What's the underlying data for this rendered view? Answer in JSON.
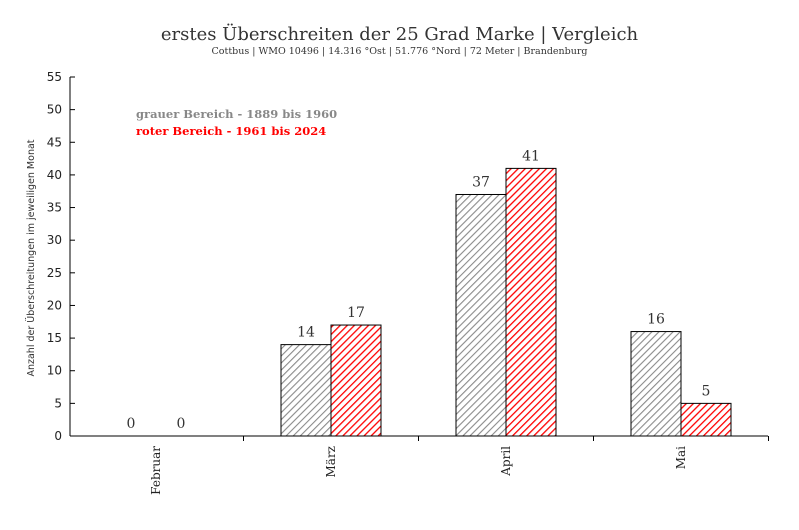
{
  "chart_data": {
    "type": "bar",
    "title": "erstes Überschreiten der 25 Grad Marke | Vergleich",
    "subtitle": "Cottbus | WMO 10496 | 14.316 °Ost | 51.776 °Nord | 72 Meter | Brandenburg",
    "xlabel": "",
    "ylabel": "Anzahl der Überschreitungen im jeweiligen Monat",
    "categories": [
      "Februar",
      "März",
      "April",
      "Mai"
    ],
    "ylim": [
      0,
      55
    ],
    "yticks": [
      0,
      5,
      10,
      15,
      20,
      25,
      30,
      35,
      40,
      45,
      50,
      55
    ],
    "grid": false,
    "legend_position": "top-left",
    "series": [
      {
        "label": "grauer Bereich - 1889 bis 1960",
        "color": "#888888",
        "values": [
          0,
          14,
          37,
          16
        ]
      },
      {
        "label": "roter Bereich - 1961 bis 2024",
        "color": "#ff0000",
        "values": [
          0,
          17,
          41,
          5
        ]
      }
    ]
  }
}
